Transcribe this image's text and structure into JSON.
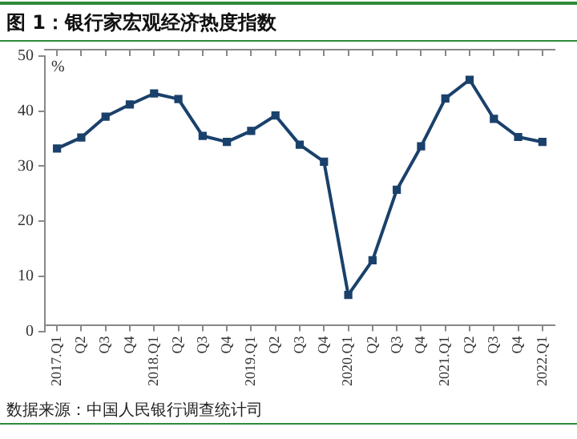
{
  "chart_data": {
    "type": "line",
    "title": "图 1：银行家宏观经济热度指数",
    "ylabel": "%",
    "categories": [
      "2017.Q1",
      "Q2",
      "Q3",
      "Q4",
      "2018.Q1",
      "Q2",
      "Q3",
      "Q4",
      "2019.Q1",
      "Q2",
      "Q3",
      "Q4",
      "2020.Q1",
      "Q2",
      "Q3",
      "Q4",
      "2021.Q1",
      "Q2",
      "Q3",
      "Q4",
      "2022.Q1"
    ],
    "series": [
      {
        "color": "#1a416b",
        "values": [
          33.2,
          35.2,
          39.0,
          41.2,
          43.2,
          42.2,
          35.5,
          34.4,
          36.4,
          39.2,
          33.9,
          30.8,
          6.6,
          12.9,
          25.7,
          33.6,
          42.3,
          45.7,
          38.6,
          35.3,
          34.4
        ]
      }
    ],
    "ylim": [
      0,
      50
    ],
    "yticks": [
      0,
      10,
      20,
      30,
      40,
      50
    ],
    "grid": false,
    "legend": false,
    "marker": "square",
    "line_style": "solid",
    "annotations": [
      "数据来源：中国人民银行调查统计司"
    ]
  }
}
